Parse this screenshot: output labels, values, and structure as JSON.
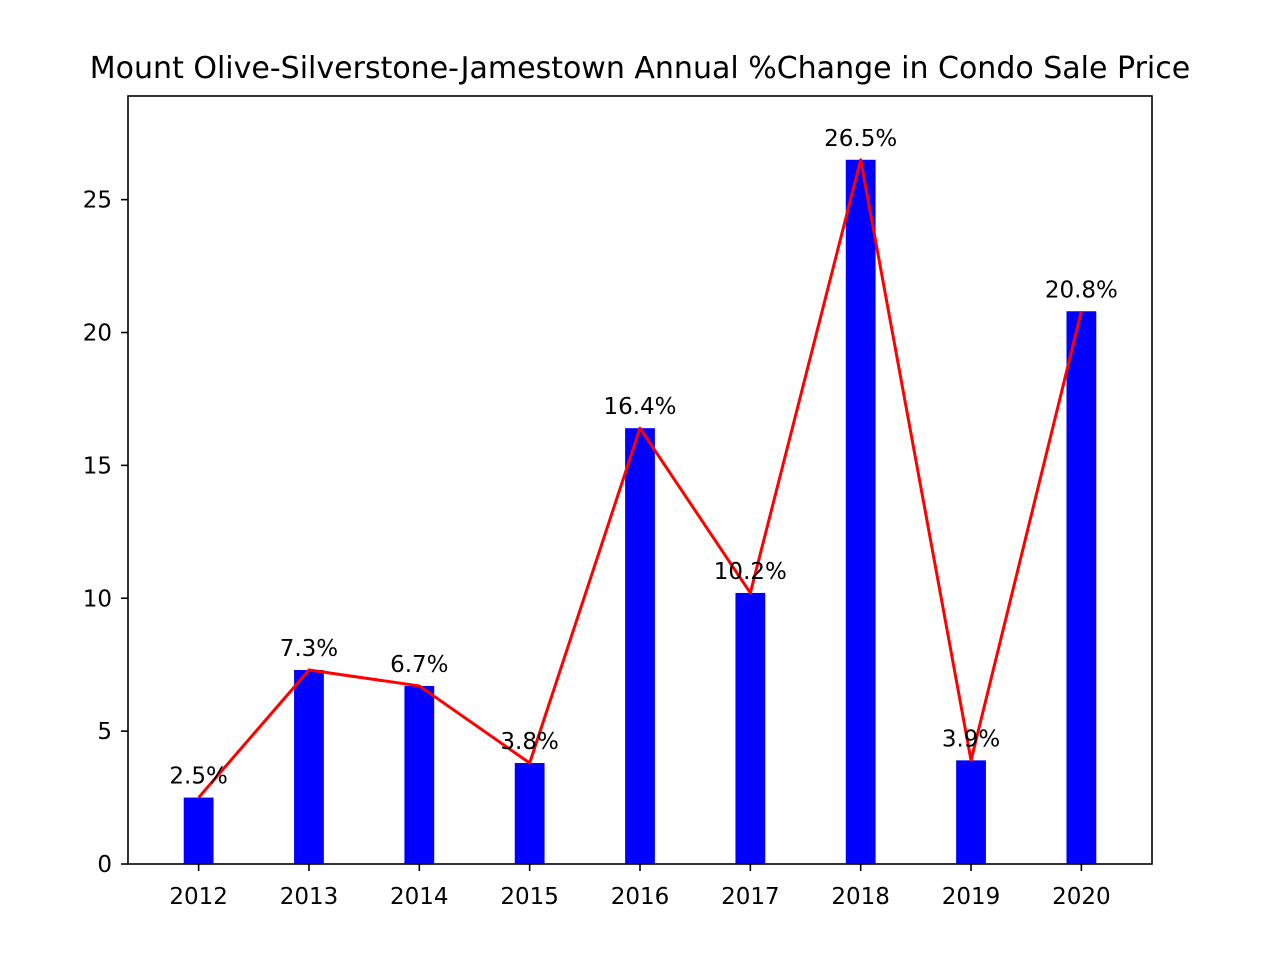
{
  "chart_data": {
    "type": "bar",
    "title": "Mount Olive-Silverstone-Jamestown Annual %Change in Condo Sale Price",
    "xlabel": "",
    "ylabel": "",
    "categories": [
      "2012",
      "2013",
      "2014",
      "2015",
      "2016",
      "2017",
      "2018",
      "2019",
      "2020"
    ],
    "values": [
      2.5,
      7.3,
      6.7,
      3.8,
      16.4,
      10.2,
      26.5,
      3.9,
      20.8
    ],
    "data_labels": [
      "2.5%",
      "7.3%",
      "6.7%",
      "3.8%",
      "16.4%",
      "10.2%",
      "26.5%",
      "3.9%",
      "20.8%"
    ],
    "ylim": [
      0,
      28.9
    ],
    "yticks": [
      0,
      5,
      10,
      15,
      20,
      25
    ],
    "grid": false,
    "overlay_line": true,
    "colors": {
      "bar": "#0000ff",
      "line": "#ff0000"
    }
  }
}
